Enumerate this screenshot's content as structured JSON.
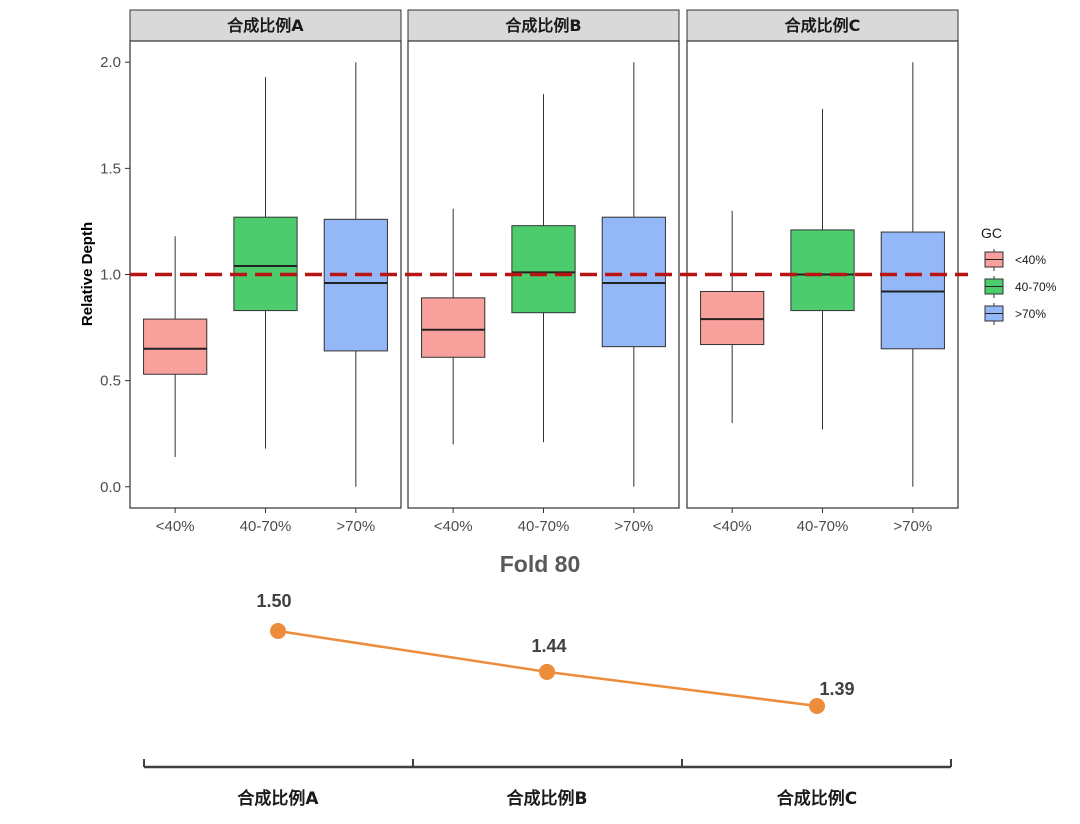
{
  "colors": {
    "low": "#f8a19c",
    "mid": "#4ccc6c",
    "high": "#94b8f7",
    "reference_line": "#b81414",
    "fold_line": "#ed8c3b",
    "strip_bg": "#d9d9d9"
  },
  "chart_data": [
    {
      "type": "boxplot",
      "ylabel": "Relative Depth",
      "ylim": [
        -0.1,
        2.1
      ],
      "yticks": [
        "0.0",
        "0.5",
        "1.0",
        "1.5",
        "2.0"
      ],
      "reference_line": 1.0,
      "legend": {
        "title": "GC",
        "position": "right",
        "entries": [
          {
            "label": "<40%",
            "color_key": "low"
          },
          {
            "label": "40-70%",
            "color_key": "mid"
          },
          {
            "label": ">70%",
            "color_key": "high"
          }
        ]
      },
      "categories": [
        "<40%",
        "40-70%",
        ">70%"
      ],
      "panels": [
        {
          "title": "合成比例A",
          "boxes": [
            {
              "category": "<40%",
              "min": 0.14,
              "q1": 0.53,
              "median": 0.65,
              "q3": 0.79,
              "max": 1.18
            },
            {
              "category": "40-70%",
              "min": 0.18,
              "q1": 0.83,
              "median": 1.04,
              "q3": 1.27,
              "max": 1.93
            },
            {
              "category": ">70%",
              "min": 0.0,
              "q1": 0.64,
              "median": 0.96,
              "q3": 1.26,
              "max": 2.0
            }
          ]
        },
        {
          "title": "合成比例B",
          "boxes": [
            {
              "category": "<40%",
              "min": 0.2,
              "q1": 0.61,
              "median": 0.74,
              "q3": 0.89,
              "max": 1.31
            },
            {
              "category": "40-70%",
              "min": 0.21,
              "q1": 0.82,
              "median": 1.01,
              "q3": 1.23,
              "max": 1.85
            },
            {
              "category": ">70%",
              "min": 0.0,
              "q1": 0.66,
              "median": 0.96,
              "q3": 1.27,
              "max": 2.0
            }
          ]
        },
        {
          "title": "合成比例C",
          "boxes": [
            {
              "category": "<40%",
              "min": 0.3,
              "q1": 0.67,
              "median": 0.79,
              "q3": 0.92,
              "max": 1.3
            },
            {
              "category": "40-70%",
              "min": 0.27,
              "q1": 0.83,
              "median": 1.0,
              "q3": 1.21,
              "max": 1.78
            },
            {
              "category": ">70%",
              "min": 0.0,
              "q1": 0.65,
              "median": 0.92,
              "q3": 1.2,
              "max": 2.0
            }
          ]
        }
      ]
    },
    {
      "type": "line",
      "title": "Fold 80",
      "categories": [
        "合成比例A",
        "合成比例B",
        "合成比例C"
      ],
      "values": [
        1.5,
        1.44,
        1.39
      ],
      "value_labels": [
        "1.50",
        "1.44",
        "1.39"
      ]
    }
  ]
}
